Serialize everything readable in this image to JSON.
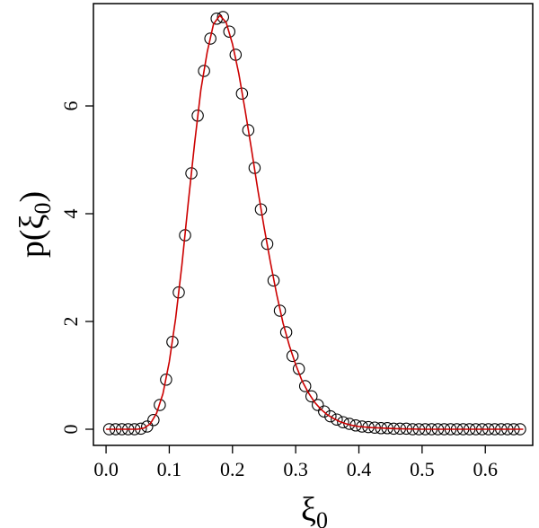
{
  "chart_data": {
    "type": "scatter",
    "xlabel": "ξ0",
    "ylabel": "p(ξ0)",
    "xlabel_parts": {
      "base": "ξ",
      "sub": "0"
    },
    "ylabel_parts": {
      "prefix": "p(",
      "base": "ξ",
      "sub": "0",
      "suffix": ")"
    },
    "xlim": [
      -0.02,
      0.675
    ],
    "ylim": [
      -0.3,
      7.9
    ],
    "x_ticks": [
      0.0,
      0.1,
      0.2,
      0.3,
      0.4,
      0.5,
      0.6
    ],
    "x_tick_labels": [
      "0.0",
      "0.1",
      "0.2",
      "0.3",
      "0.4",
      "0.5",
      "0.6"
    ],
    "y_ticks": [
      0,
      2,
      4,
      6
    ],
    "y_tick_labels": [
      "0",
      "2",
      "4",
      "6"
    ],
    "grid": false,
    "series": [
      {
        "kind": "points",
        "marker": "open-circle",
        "color": "#000000",
        "x": [
          0.005,
          0.015,
          0.025,
          0.035,
          0.045,
          0.055,
          0.065,
          0.075,
          0.085,
          0.095,
          0.105,
          0.115,
          0.125,
          0.135,
          0.145,
          0.155,
          0.165,
          0.175,
          0.185,
          0.195,
          0.205,
          0.215,
          0.225,
          0.235,
          0.245,
          0.255,
          0.265,
          0.275,
          0.285,
          0.295,
          0.305,
          0.315,
          0.325,
          0.335,
          0.345,
          0.355,
          0.365,
          0.375,
          0.385,
          0.395,
          0.405,
          0.415,
          0.425,
          0.435,
          0.445,
          0.455,
          0.465,
          0.475,
          0.485,
          0.495,
          0.505,
          0.515,
          0.525,
          0.535,
          0.545,
          0.555,
          0.565,
          0.575,
          0.585,
          0.595,
          0.605,
          0.615,
          0.625,
          0.635,
          0.645,
          0.655
        ],
        "y": [
          0.0,
          0.0,
          0.0,
          0.0,
          0.0,
          0.01,
          0.05,
          0.17,
          0.45,
          0.92,
          1.62,
          2.54,
          3.6,
          4.75,
          5.82,
          6.65,
          7.25,
          7.62,
          7.65,
          7.38,
          6.95,
          6.23,
          5.55,
          4.85,
          4.08,
          3.44,
          2.76,
          2.2,
          1.8,
          1.36,
          1.12,
          0.8,
          0.61,
          0.45,
          0.33,
          0.24,
          0.18,
          0.13,
          0.1,
          0.07,
          0.05,
          0.04,
          0.03,
          0.02,
          0.02,
          0.01,
          0.01,
          0.01,
          0.0,
          0.0,
          0.0,
          0.0,
          0.0,
          0.0,
          0.0,
          0.0,
          0.0,
          0.0,
          0.0,
          0.0,
          0.0,
          0.0,
          0.0,
          0.0,
          0.0,
          0.0
        ]
      },
      {
        "kind": "line",
        "color": "#cc0000",
        "x": [
          0.0,
          0.01,
          0.02,
          0.03,
          0.04,
          0.05,
          0.06,
          0.07,
          0.08,
          0.09,
          0.1,
          0.11,
          0.12,
          0.13,
          0.14,
          0.15,
          0.16,
          0.17,
          0.18,
          0.19,
          0.2,
          0.21,
          0.22,
          0.23,
          0.24,
          0.25,
          0.26,
          0.27,
          0.28,
          0.29,
          0.3,
          0.31,
          0.32,
          0.33,
          0.34,
          0.35,
          0.36,
          0.37,
          0.38,
          0.39,
          0.4,
          0.42,
          0.44,
          0.46,
          0.5,
          0.55,
          0.6,
          0.66
        ],
        "y": [
          0.0,
          0.0,
          0.0,
          0.0,
          0.0,
          0.0,
          0.02,
          0.1,
          0.3,
          0.66,
          1.25,
          2.05,
          3.05,
          4.2,
          5.3,
          6.3,
          7.0,
          7.52,
          7.68,
          7.55,
          7.15,
          6.6,
          5.92,
          5.2,
          4.45,
          3.75,
          3.1,
          2.5,
          1.97,
          1.55,
          1.2,
          0.9,
          0.68,
          0.5,
          0.37,
          0.27,
          0.2,
          0.14,
          0.1,
          0.07,
          0.05,
          0.03,
          0.02,
          0.01,
          0.0,
          0.0,
          0.0,
          0.0
        ]
      }
    ]
  }
}
